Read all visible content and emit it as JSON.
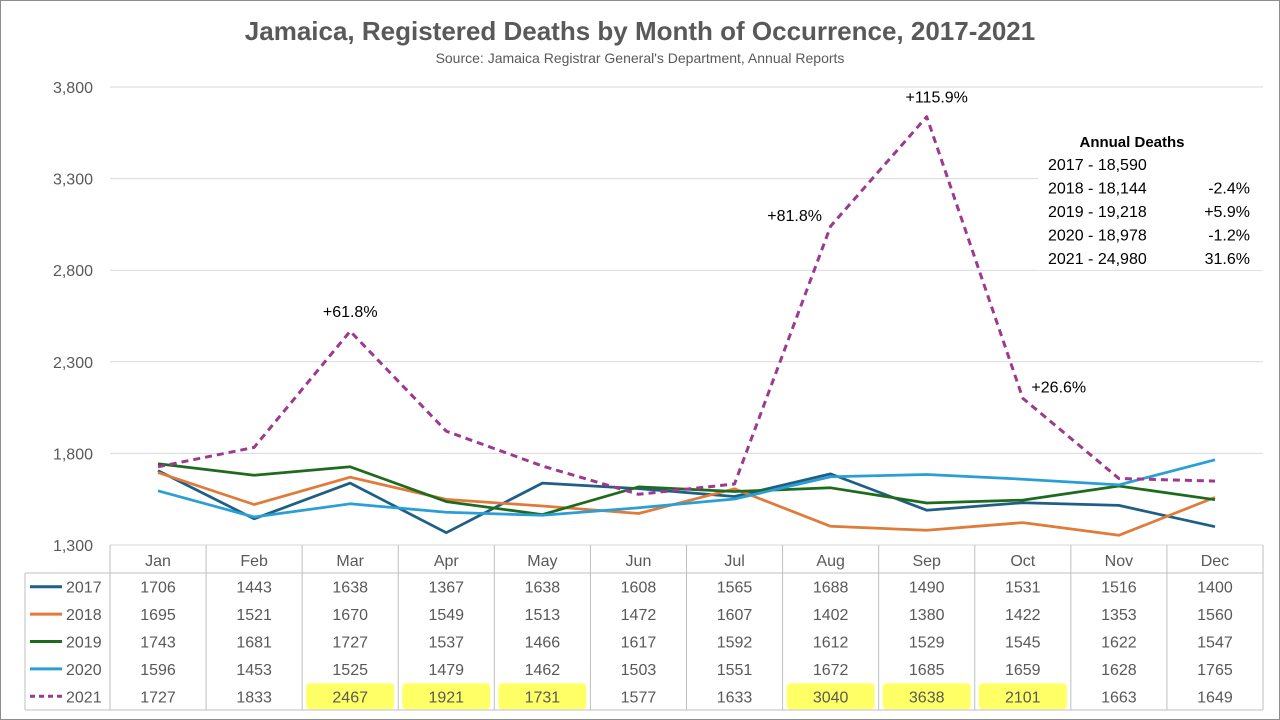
{
  "chart_data": {
    "type": "line",
    "title": "Jamaica, Registered Deaths by Month of Occurrence, 2017-2021",
    "subtitle": "Source: Jamaica Registrar General's Department, Annual Reports",
    "categories": [
      "Jan",
      "Feb",
      "Mar",
      "Apr",
      "May",
      "Jun",
      "Jul",
      "Aug",
      "Sep",
      "Oct",
      "Nov",
      "Dec"
    ],
    "ylim": [
      1300,
      3800
    ],
    "yticks": [
      1300,
      1800,
      2300,
      2800,
      3300,
      3800
    ],
    "ytick_labels": [
      "1,300",
      "1,800",
      "2,300",
      "2,800",
      "3,300",
      "3,800"
    ],
    "grid": true,
    "legend": "data-table",
    "series": [
      {
        "name": "2017",
        "color": "#1f5f85",
        "dashed": false,
        "values": [
          1706,
          1443,
          1638,
          1367,
          1638,
          1608,
          1565,
          1688,
          1490,
          1531,
          1516,
          1400
        ]
      },
      {
        "name": "2018",
        "color": "#e07b39",
        "dashed": false,
        "values": [
          1695,
          1521,
          1670,
          1549,
          1513,
          1472,
          1607,
          1402,
          1380,
          1422,
          1353,
          1560
        ]
      },
      {
        "name": "2019",
        "color": "#1e6b1e",
        "dashed": false,
        "values": [
          1743,
          1681,
          1727,
          1537,
          1466,
          1617,
          1592,
          1612,
          1529,
          1545,
          1622,
          1547
        ]
      },
      {
        "name": "2020",
        "color": "#2a9fd6",
        "dashed": false,
        "values": [
          1596,
          1453,
          1525,
          1479,
          1462,
          1503,
          1551,
          1672,
          1685,
          1659,
          1628,
          1765
        ]
      },
      {
        "name": "2021",
        "color": "#9b3a8f",
        "dashed": true,
        "values": [
          1727,
          1833,
          2467,
          1921,
          1731,
          1577,
          1633,
          3040,
          3638,
          2101,
          1663,
          1649
        ],
        "highlight": [
          2,
          3,
          4,
          7,
          8,
          9
        ]
      }
    ],
    "annotations": [
      {
        "text": "+61.8%",
        "x": "Mar",
        "y": 2467
      },
      {
        "text": "+81.8%",
        "x": "Aug",
        "y": 3040
      },
      {
        "text": "+115.9%",
        "x": "Sep",
        "y": 3638
      },
      {
        "text": "+26.6%",
        "x": "Oct",
        "y": 2101
      }
    ],
    "annual_box": {
      "title": "Annual Deaths",
      "rows": [
        {
          "label": "2017 - 18,590",
          "change": ""
        },
        {
          "label": "2018 - 18,144",
          "change": "-2.4%"
        },
        {
          "label": "2019 - 19,218",
          "change": "+5.9%"
        },
        {
          "label": "2020 - 18,978",
          "change": "-1.2%"
        },
        {
          "label": "2021 - 24,980",
          "change": "31.6%"
        }
      ]
    },
    "colors": {
      "highlight": "#ffff66",
      "grid": "#d9d9d9",
      "text": "#595959"
    }
  }
}
